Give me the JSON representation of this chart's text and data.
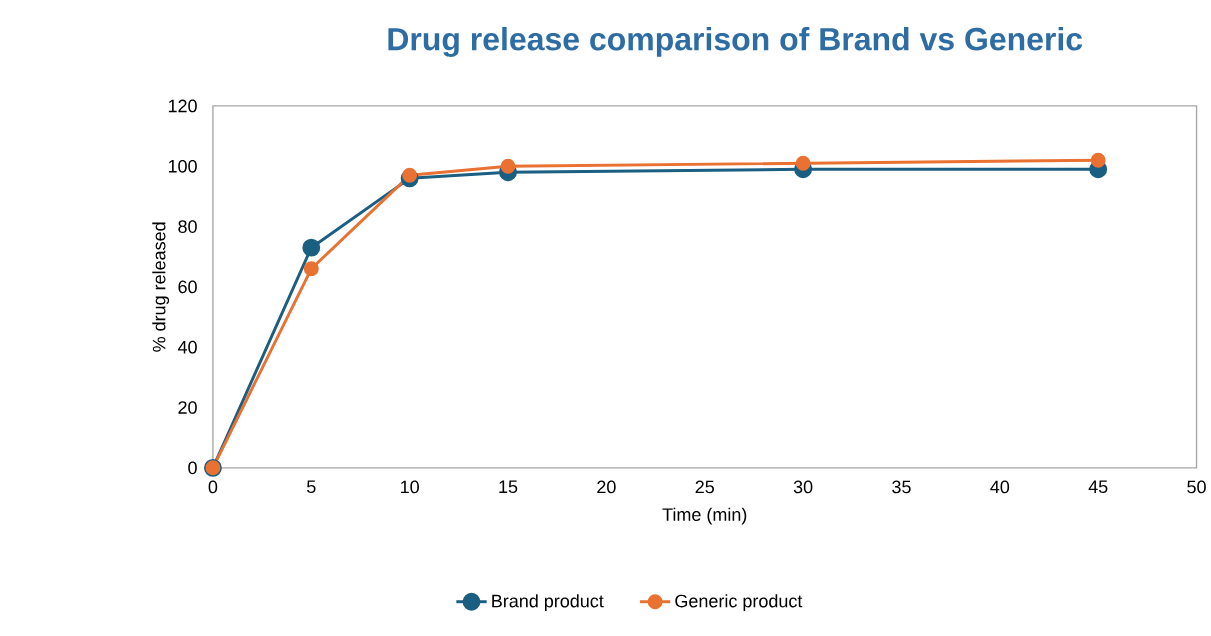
{
  "chart_data": {
    "type": "line",
    "title": "Drug release comparison of Brand vs Generic",
    "xlabel": "Time (min)",
    "ylabel": "% drug released",
    "x": [
      0,
      5,
      10,
      15,
      30,
      45
    ],
    "series": [
      {
        "name": "Brand product",
        "color": "#1a5e82",
        "values": [
          0,
          73,
          96,
          98,
          99,
          99
        ]
      },
      {
        "name": "Generic product",
        "color": "#e97132",
        "values": [
          0,
          66,
          97,
          100,
          101,
          102
        ]
      }
    ],
    "xlim": [
      0,
      50
    ],
    "ylim": [
      0,
      120
    ],
    "xticks": [
      0,
      5,
      10,
      15,
      20,
      25,
      30,
      35,
      40,
      45,
      50
    ],
    "yticks": [
      0,
      20,
      40,
      60,
      80,
      100,
      120
    ],
    "grid": false,
    "legend": "bottom",
    "marker": "circle",
    "line_style": "solid"
  }
}
